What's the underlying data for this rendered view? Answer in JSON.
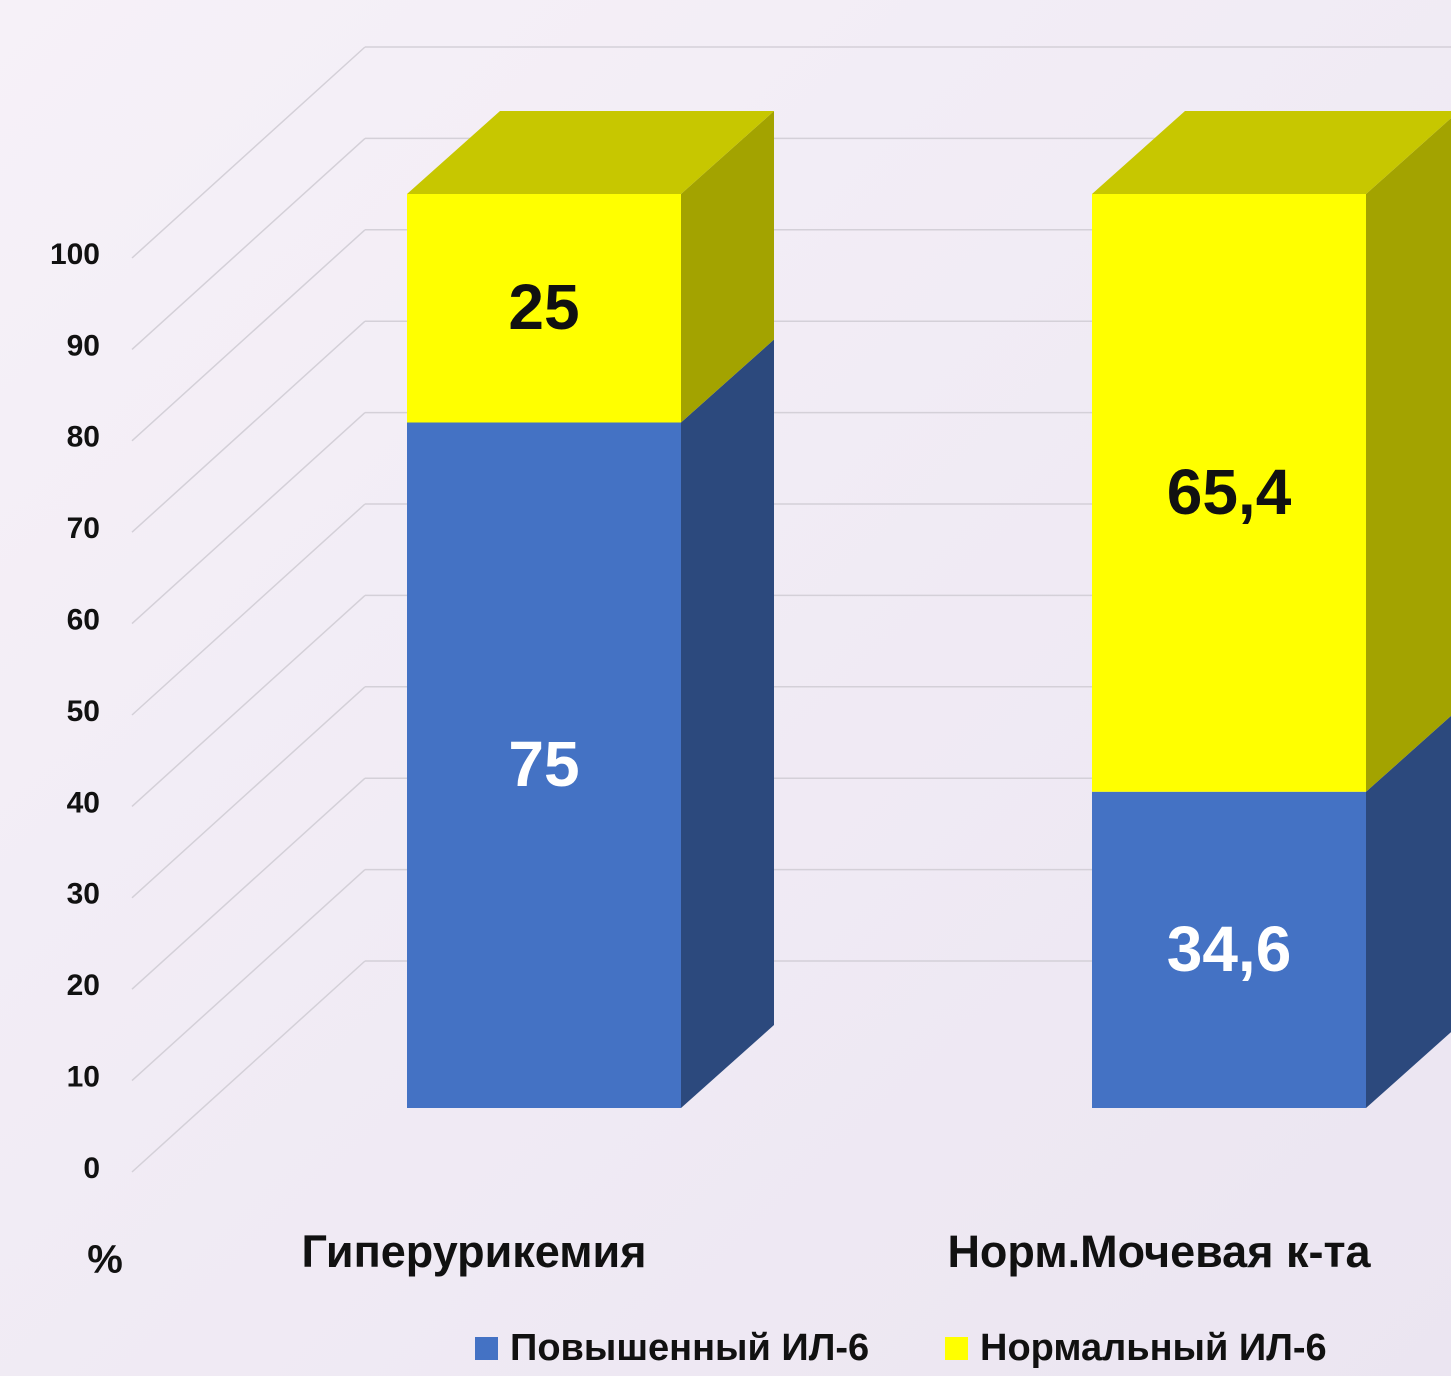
{
  "chart_data": {
    "type": "bar3d_stacked",
    "y_label": "%",
    "categories": [
      "Гиперурикемия",
      "Норм.Мочевая к-та"
    ],
    "series": [
      {
        "name": "Повышенный ИЛ-6",
        "color": "#4472c4",
        "values": [
          75,
          34.6
        ],
        "value_labels": [
          "75",
          "34,6"
        ]
      },
      {
        "name": "Нормальный ИЛ-6",
        "color": "#ffff00",
        "values": [
          25,
          65.4
        ],
        "value_labels": [
          "25",
          "65,4"
        ]
      }
    ],
    "ylim": [
      0,
      100
    ],
    "yticks": [
      0,
      10,
      20,
      30,
      40,
      50,
      60,
      70,
      80,
      90,
      100
    ],
    "grid": true
  }
}
